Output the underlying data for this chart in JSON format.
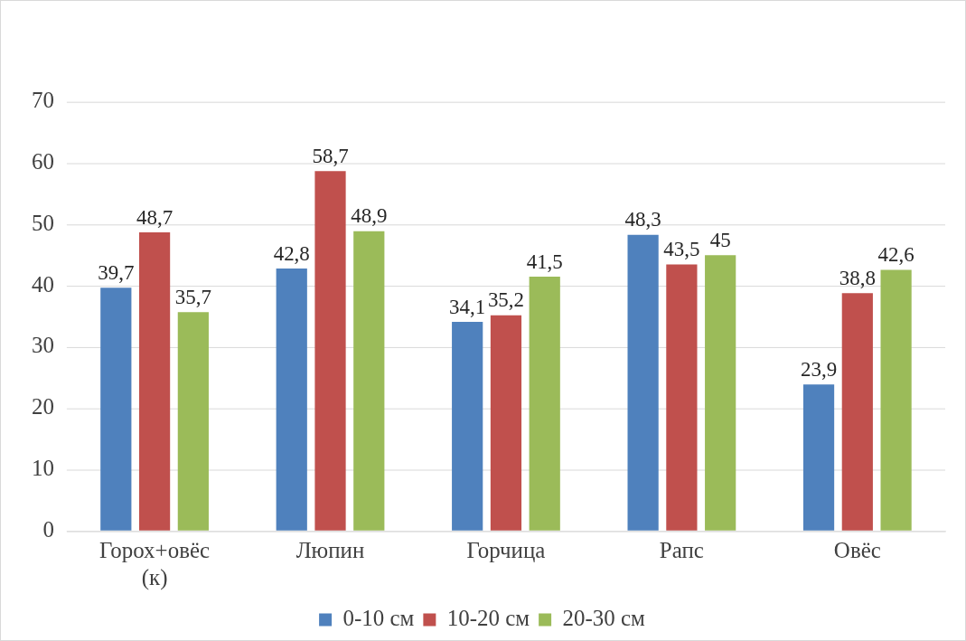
{
  "chart_data": {
    "type": "bar",
    "categories": [
      "Горох+овёс (к)",
      "Люпин",
      "Горчица",
      "Рапс",
      "Овёс"
    ],
    "series": [
      {
        "name": "0-10 см",
        "color": "#4f81bd",
        "values": [
          39.7,
          42.8,
          34.1,
          48.3,
          23.9
        ],
        "value_labels": [
          "39,7",
          "42,8",
          "34,1",
          "48,3",
          "23,9"
        ]
      },
      {
        "name": "10-20 см",
        "color": "#c0504d",
        "values": [
          48.7,
          58.7,
          35.2,
          43.5,
          38.8
        ],
        "value_labels": [
          "48,7",
          "58,7",
          "35,2",
          "43,5",
          "38,8"
        ]
      },
      {
        "name": "20-30 см",
        "color": "#9bbb59",
        "values": [
          35.7,
          48.9,
          41.5,
          45,
          42.6
        ],
        "value_labels": [
          "35,7",
          "48,9",
          "41,5",
          "45",
          "42,6"
        ]
      }
    ],
    "ylim": [
      0,
      70
    ],
    "yticks": [
      0,
      10,
      20,
      30,
      40,
      50,
      60,
      70
    ],
    "grid": "y",
    "legend": "bottom"
  }
}
